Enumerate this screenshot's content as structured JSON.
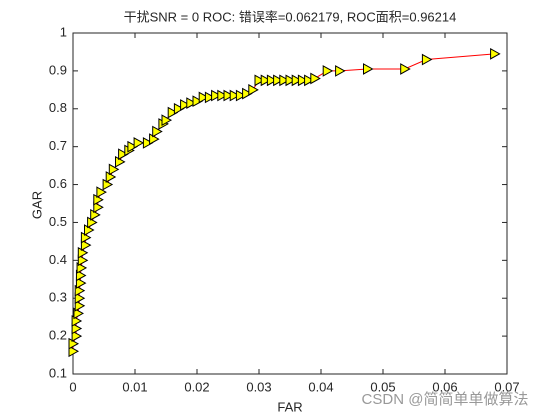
{
  "chart_data": {
    "type": "line",
    "title": "干扰SNR = 0 ROC:    错误率=0.062179,   ROC面积=0.96214",
    "xlabel": "FAR",
    "ylabel": "GAR",
    "watermark": "CSDN @简简单单做算法",
    "x": [
      0,
      0,
      0.0005,
      0.0005,
      0.0005,
      0.0008,
      0.001,
      0.001,
      0.001,
      0.0012,
      0.0012,
      0.0013,
      0.0015,
      0.0015,
      0.002,
      0.002,
      0.0025,
      0.003,
      0.0035,
      0.004,
      0.004,
      0.0045,
      0.0055,
      0.006,
      0.0065,
      0.0075,
      0.008,
      0.009,
      0.0095,
      0.0105,
      0.012,
      0.013,
      0.0135,
      0.0145,
      0.015,
      0.016,
      0.017,
      0.018,
      0.019,
      0.02,
      0.021,
      0.022,
      0.023,
      0.024,
      0.025,
      0.026,
      0.027,
      0.028,
      0.029,
      0.03,
      0.031,
      0.032,
      0.033,
      0.034,
      0.035,
      0.036,
      0.037,
      0.038,
      0.039,
      0.041,
      0.043,
      0.0475,
      0.0535,
      0.057,
      0.068
    ],
    "series": [
      {
        "color": "#ff0000",
        "marker_color": "#ffff00",
        "marker_edge": "#000000",
        "values": [
          0.16,
          0.18,
          0.2,
          0.22,
          0.24,
          0.26,
          0.28,
          0.3,
          0.32,
          0.34,
          0.36,
          0.38,
          0.4,
          0.42,
          0.44,
          0.46,
          0.48,
          0.5,
          0.52,
          0.54,
          0.56,
          0.58,
          0.6,
          0.62,
          0.64,
          0.66,
          0.68,
          0.69,
          0.7,
          0.71,
          0.71,
          0.72,
          0.74,
          0.76,
          0.77,
          0.79,
          0.8,
          0.81,
          0.815,
          0.82,
          0.83,
          0.83,
          0.835,
          0.835,
          0.835,
          0.835,
          0.835,
          0.84,
          0.85,
          0.875,
          0.875,
          0.875,
          0.875,
          0.875,
          0.875,
          0.875,
          0.875,
          0.875,
          0.88,
          0.9,
          0.9,
          0.905,
          0.905,
          0.93,
          0.945
        ]
      }
    ],
    "xlim": [
      0,
      0.07
    ],
    "xticks": [
      0,
      0.01,
      0.02,
      0.03,
      0.04,
      0.05,
      0.06,
      0.07
    ],
    "ylim": [
      0.1,
      1
    ],
    "yticks": [
      0.1,
      0.2,
      0.3,
      0.4,
      0.5,
      0.6,
      0.7,
      0.8,
      0.9,
      1
    ],
    "grid": false
  }
}
